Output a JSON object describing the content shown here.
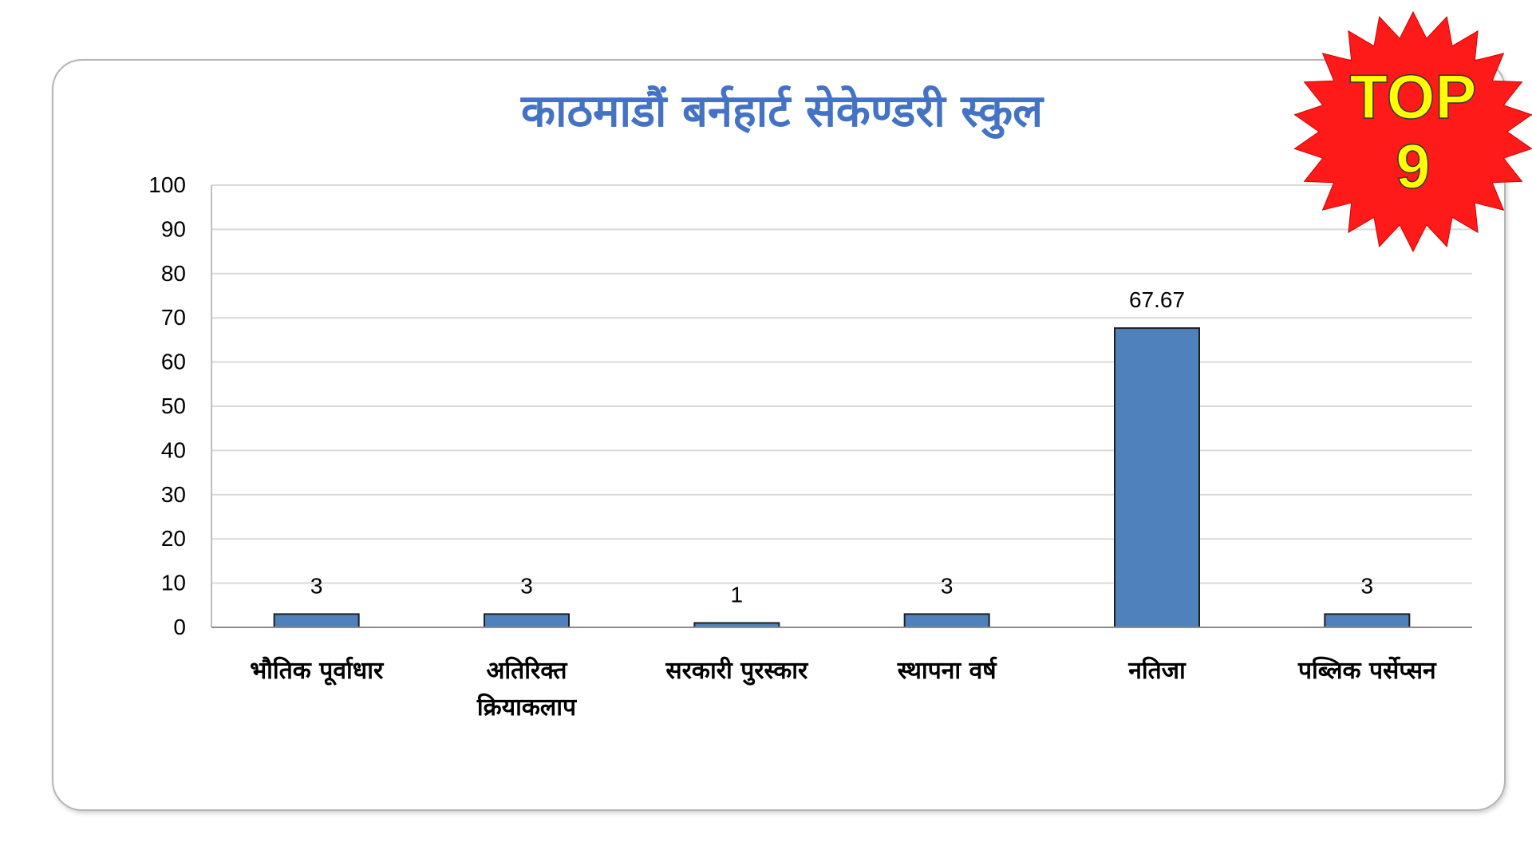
{
  "chart_data": {
    "type": "bar",
    "title": "काठमाडौं बर्नहार्ट सेकेण्डरी स्कुल",
    "categories": [
      [
        "भौतिक पूर्वाधार"
      ],
      [
        "अतिरिक्त",
        "क्रियाकलाप"
      ],
      [
        "सरकारी पुरस्कार"
      ],
      [
        "स्थापना वर्ष"
      ],
      [
        "नतिजा"
      ],
      [
        "पब्लिक पर्सेप्सन"
      ]
    ],
    "values": [
      3,
      3,
      1,
      3,
      67.67,
      3
    ],
    "data_labels": [
      "3",
      "3",
      "1",
      "3",
      "67.67",
      "3"
    ],
    "ylim": [
      0,
      100
    ],
    "y_ticks": [
      0,
      10,
      20,
      30,
      40,
      50,
      60,
      70,
      80,
      90,
      100
    ],
    "grid": true,
    "bar_color": "#4f81bd",
    "bar_edge_color": "#1f1f1f",
    "title_color": "#4472c4"
  },
  "badge": {
    "line1": "TOP",
    "line2": "9",
    "fill_color": "#ff1a1a",
    "text_color": "#ffff00"
  }
}
